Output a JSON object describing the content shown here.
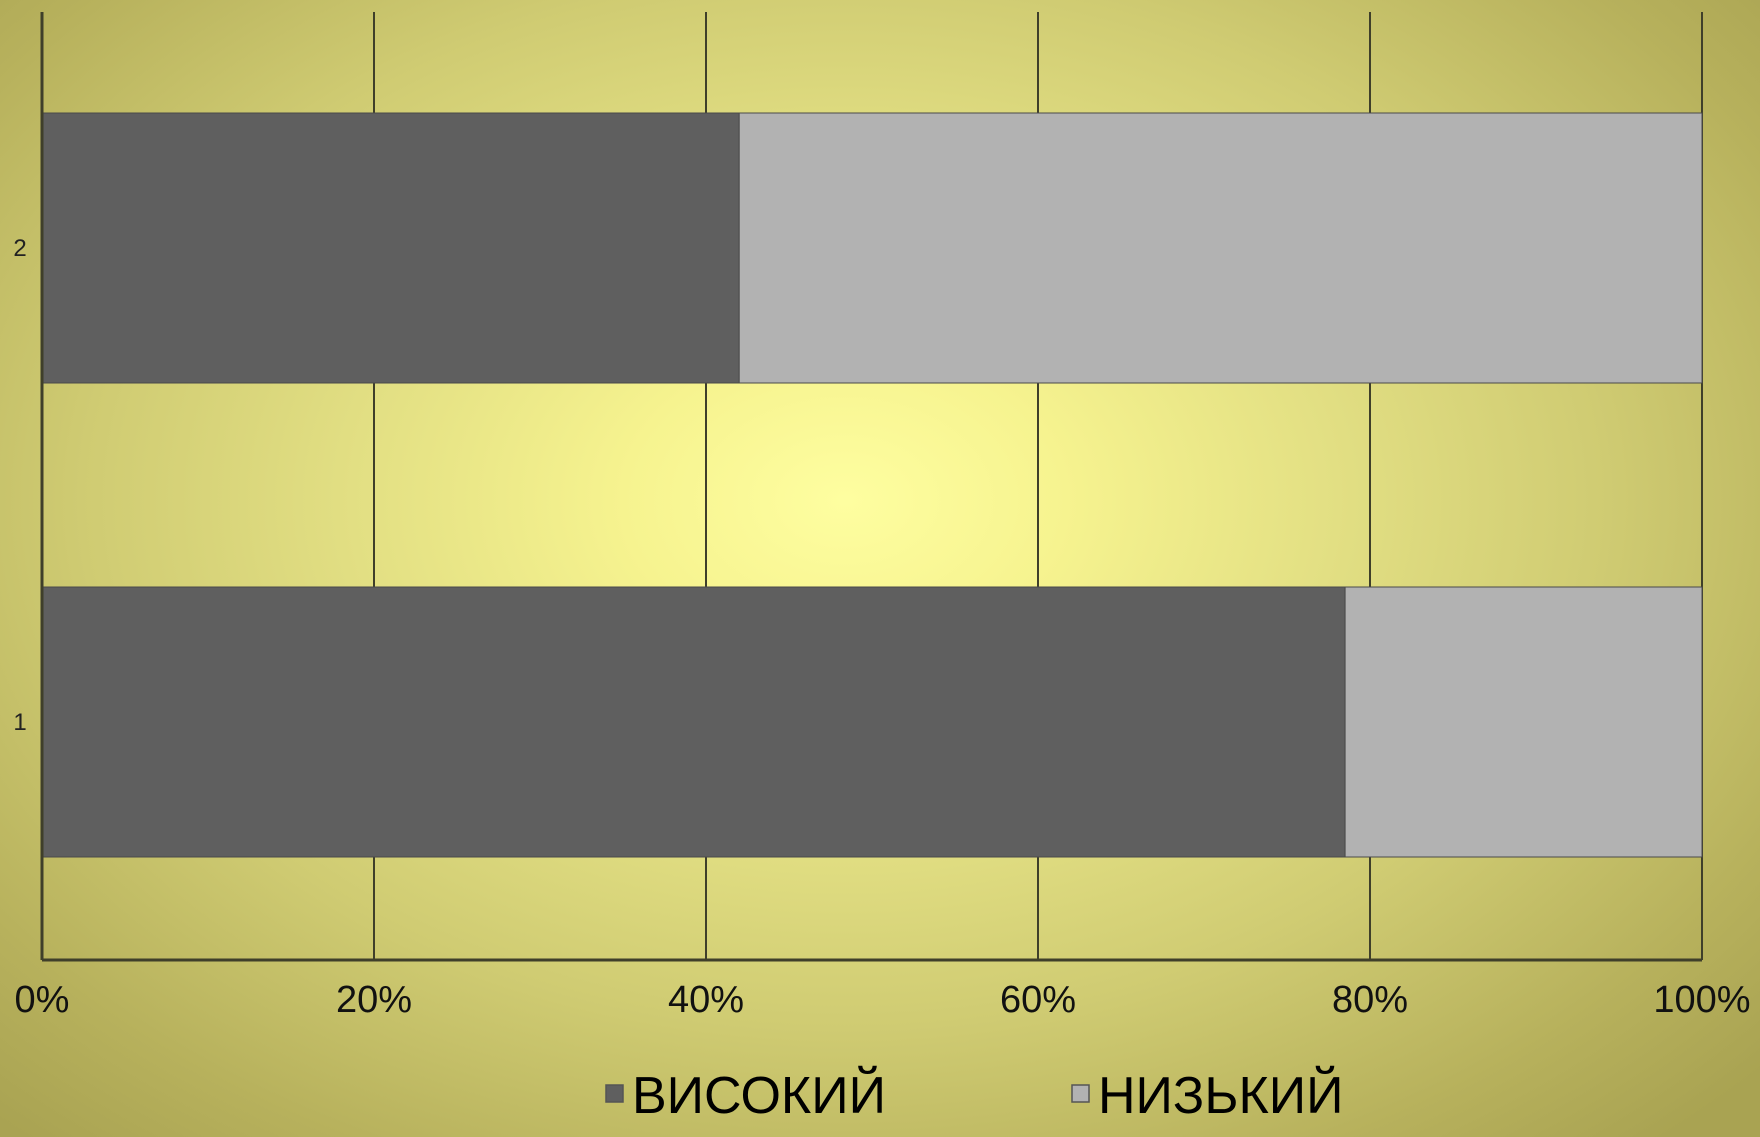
{
  "chart_data": {
    "type": "bar",
    "orientation": "horizontal",
    "stacked": "percent",
    "title": "",
    "xlabel": "",
    "ylabel": "",
    "categories": [
      "1",
      "2"
    ],
    "series": [
      {
        "name": "ВИСОКИЙ",
        "values": [
          78.5,
          42
        ],
        "color": "#5f5f5f"
      },
      {
        "name": "НИЗЬКИЙ",
        "values": [
          21.5,
          58
        ],
        "color": "#b2b2b2"
      }
    ],
    "xlim": [
      0,
      100
    ],
    "xticks": [
      "0%",
      "20%",
      "40%",
      "60%",
      "80%",
      "100%"
    ],
    "grid": "vertical",
    "legend": "bottom-center"
  }
}
